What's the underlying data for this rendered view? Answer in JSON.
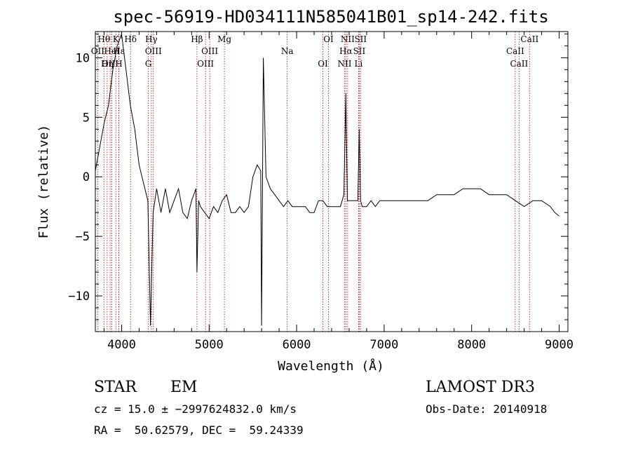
{
  "chart_data": {
    "type": "line",
    "title": "spec-56919-HD034111N585041B01_sp14-242.fits",
    "xlabel": "Wavelength (Å)",
    "ylabel": "Flux (relative)",
    "xlim": [
      3700,
      9100
    ],
    "ylim": [
      -13,
      12.2
    ],
    "x_ticks": [
      4000,
      5000,
      6000,
      7000,
      8000,
      9000
    ],
    "x_tick_labels": [
      "4000",
      "5000",
      "6000",
      "7000",
      "8000",
      "9000"
    ],
    "y_ticks": [
      -10,
      -5,
      0,
      5,
      10
    ],
    "y_tick_labels": [
      "−10",
      "−5",
      "0",
      "5",
      "10"
    ],
    "series": [
      {
        "name": "flux",
        "x": [
          3700,
          3800,
          3850,
          3900,
          3950,
          4000,
          4050,
          4100,
          4150,
          4200,
          4250,
          4300,
          4330,
          4360,
          4400,
          4450,
          4500,
          4550,
          4600,
          4650,
          4700,
          4750,
          4800,
          4850,
          4861,
          4880,
          4900,
          4950,
          5000,
          5050,
          5100,
          5150,
          5200,
          5250,
          5300,
          5350,
          5400,
          5450,
          5500,
          5550,
          5590,
          5600,
          5620,
          5650,
          5700,
          5750,
          5800,
          5850,
          5900,
          5950,
          6000,
          6050,
          6100,
          6150,
          6200,
          6250,
          6300,
          6350,
          6400,
          6450,
          6500,
          6540,
          6563,
          6580,
          6600,
          6650,
          6700,
          6716,
          6731,
          6750,
          6800,
          6850,
          6900,
          6950,
          7000,
          7100,
          7200,
          7300,
          7400,
          7500,
          7600,
          7700,
          7800,
          7900,
          8000,
          8100,
          8200,
          8300,
          8400,
          8500,
          8600,
          8700,
          8800,
          8900,
          8950,
          9000
        ],
        "y": [
          0.5,
          4.5,
          6,
          9,
          11,
          12,
          9,
          6,
          4,
          1,
          -0.5,
          -2,
          -12.5,
          -3,
          -1,
          -3,
          -1,
          -3,
          -2,
          -1,
          -3,
          -3.5,
          -2,
          -1,
          -8,
          -2,
          -2.5,
          -3,
          -3.5,
          -2.5,
          -3,
          -2,
          -1.5,
          -3,
          -3,
          -2.5,
          -3,
          -2.5,
          0,
          1,
          0.5,
          -12.5,
          10,
          0,
          -1,
          -1.5,
          -2,
          -2.5,
          -2,
          -2.5,
          -2.5,
          -2.5,
          -2.5,
          -3,
          -3,
          -2,
          -2,
          -2.5,
          -2.5,
          -2.5,
          -2.5,
          -1.5,
          7,
          -2,
          -2,
          -2,
          -2,
          4,
          -2,
          -2.5,
          -2.5,
          -2,
          -2.5,
          -2,
          -2,
          -2,
          -2,
          -2,
          -2,
          -2,
          -1.5,
          -1.5,
          -1.5,
          -1,
          -1,
          -1,
          -1.5,
          -1.5,
          -1.5,
          -2,
          -2.5,
          -2,
          -2,
          -2.5,
          -3,
          -3.3
        ]
      }
    ],
    "line_marks": [
      {
        "label": "Hθ",
        "x": 3798
      },
      {
        "label": "OII",
        "x": 3727
      },
      {
        "label": "OIII",
        "x": 3869
      },
      {
        "label": "K",
        "x": 3934
      },
      {
        "label": "HeI",
        "x": 3889
      },
      {
        "label": "Hη",
        "x": 3835
      },
      {
        "label": "Hδ",
        "x": 4102
      },
      {
        "label": "Hε",
        "x": 3970
      },
      {
        "label": "H",
        "x": 3968
      },
      {
        "label": "Hγ",
        "x": 4340
      },
      {
        "label": "OIII",
        "x": 4363
      },
      {
        "label": "G",
        "x": 4305
      },
      {
        "label": "Hβ",
        "x": 4861
      },
      {
        "label": "OIII",
        "x": 5007
      },
      {
        "label": "OIII",
        "x": 4959
      },
      {
        "label": "Mg",
        "x": 5175
      },
      {
        "label": "Na",
        "x": 5893
      },
      {
        "label": "OI",
        "x": 6300
      },
      {
        "label": "OI",
        "x": 6364
      },
      {
        "label": "Hα",
        "x": 6563
      },
      {
        "label": "NII",
        "x": 6548
      },
      {
        "label": "NII",
        "x": 6583
      },
      {
        "label": "SII",
        "x": 6716
      },
      {
        "label": "Li",
        "x": 6708
      },
      {
        "label": "SII",
        "x": 6731
      },
      {
        "label": "CaII",
        "x": 8498
      },
      {
        "label": "CaII",
        "x": 8542
      },
      {
        "label": "CaII",
        "x": 8662
      }
    ]
  },
  "info": {
    "class": "STAR",
    "subclass": "EM",
    "survey": "LAMOST DR3",
    "cz": "cz = 15.0 ± −2997624832.0 km/s",
    "obs_date": "Obs-Date: 20140918",
    "coords": "RA =  50.62579, DEC =  59.24339"
  }
}
